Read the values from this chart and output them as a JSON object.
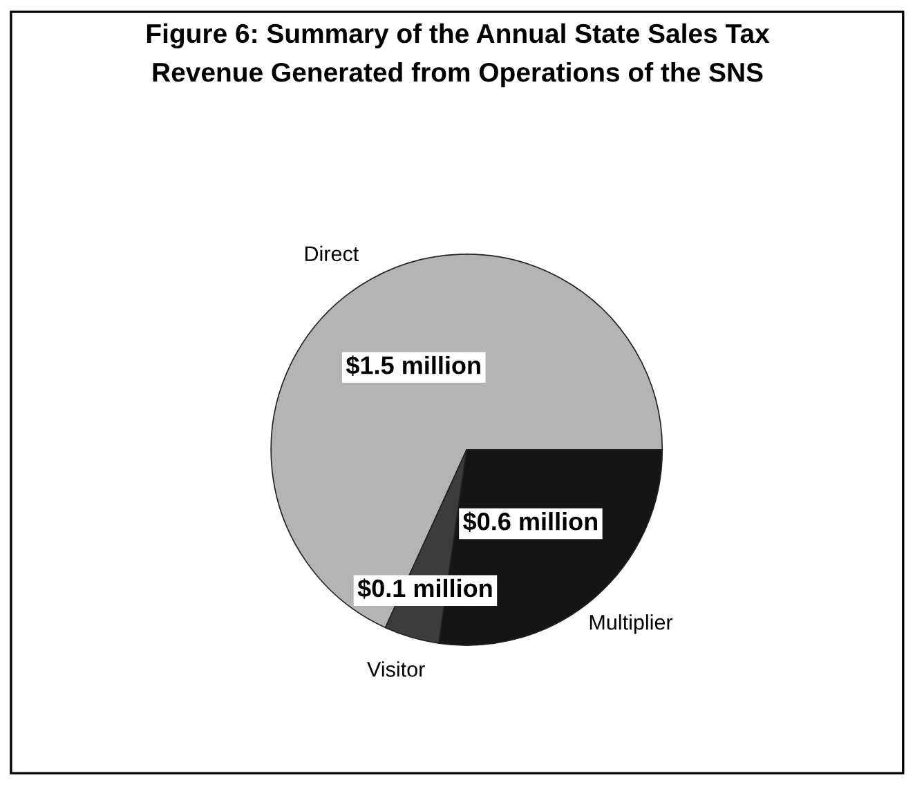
{
  "chart_data": {
    "type": "pie",
    "title": "Figure 6: Summary of the Annual State Sales Tax\nRevenue Generated from Operations of the SNS",
    "categories": [
      "Direct",
      "Visitor",
      "Multiplier"
    ],
    "values": [
      1.5,
      0.1,
      0.6
    ],
    "colors": [
      "#b4b4b4",
      "#3c3c3c",
      "#151515"
    ],
    "value_labels": [
      "$1.5 million",
      "$0.1 million",
      "$0.6 million"
    ],
    "legend": false
  }
}
